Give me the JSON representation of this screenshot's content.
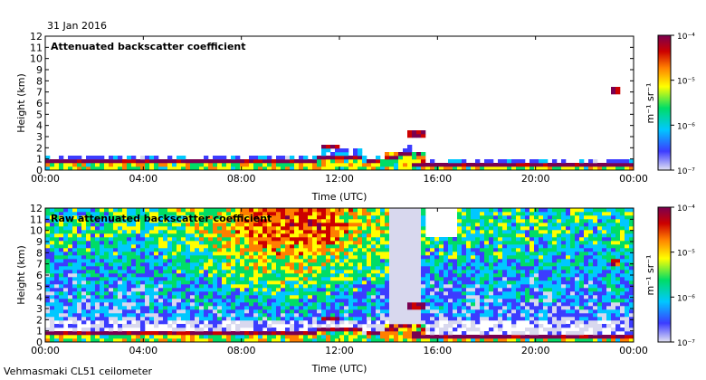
{
  "page": {
    "date": "31 Jan 2016",
    "footer": "Vehmasmaki CL51 ceilometer"
  },
  "colorbar": {
    "label": "m⁻¹ sr⁻¹",
    "ticks": [
      "10⁻⁴",
      "10⁻⁵",
      "10⁻⁶",
      "10⁻⁷"
    ],
    "range": [
      1e-07,
      0.0001
    ],
    "scale": "log",
    "colors": [
      "#d8d8ee",
      "#3c3cff",
      "#00c8ff",
      "#00dd66",
      "#ffff00",
      "#ff7f00",
      "#cc0000",
      "#7a0050"
    ]
  },
  "chart_data": [
    {
      "type": "heatmap",
      "title": "Attenuated backscatter coefficient",
      "xlabel": "Time (UTC)",
      "ylabel": "Height (km)",
      "x_ticks": [
        "00:00",
        "04:00",
        "08:00",
        "12:00",
        "16:00",
        "20:00",
        "00:00"
      ],
      "y_ticks": [
        "0",
        "1",
        "2",
        "3",
        "4",
        "5",
        "6",
        "7",
        "8",
        "9",
        "10",
        "11",
        "12"
      ],
      "xlim_hours": [
        0,
        24
      ],
      "ylim_km": [
        0,
        12
      ],
      "grid": false,
      "colorbar": "right"
    },
    {
      "type": "heatmap",
      "title": "Raw attenuated backscatter coefficient",
      "xlabel": "Time (UTC)",
      "ylabel": "Height (km)",
      "x_ticks": [
        "00:00",
        "04:00",
        "08:00",
        "12:00",
        "16:00",
        "20:00",
        "00:00"
      ],
      "y_ticks": [
        "0",
        "1",
        "2",
        "3",
        "4",
        "5",
        "6",
        "7",
        "8",
        "9",
        "10",
        "11",
        "12"
      ],
      "xlim_hours": [
        0,
        24
      ],
      "ylim_km": [
        0,
        12
      ],
      "grid": false,
      "colorbar": "right"
    }
  ]
}
